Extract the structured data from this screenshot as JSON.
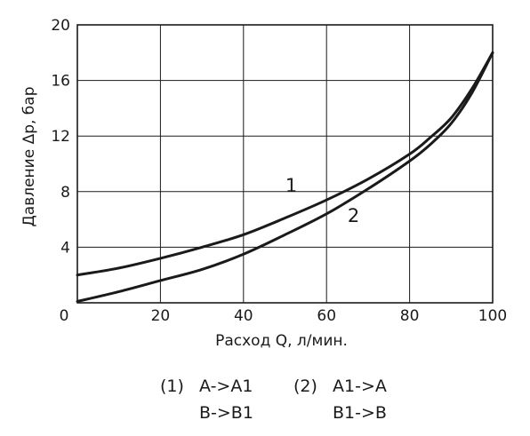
{
  "chart_data": {
    "type": "line",
    "xlabel": "Расход Q, л/мин.",
    "ylabel": "Давление Δp, бар",
    "xlim": [
      0,
      100
    ],
    "ylim": [
      0,
      20
    ],
    "xticks": [
      "0",
      "20",
      "40",
      "60",
      "80",
      "100"
    ],
    "yticks": [
      "4",
      "8",
      "12",
      "16",
      "20"
    ],
    "grid": true,
    "series": [
      {
        "name": "1",
        "x": [
          0,
          10,
          20,
          30,
          40,
          50,
          60,
          70,
          80,
          85,
          90,
          95,
          100
        ],
        "y": [
          2.0,
          2.5,
          3.2,
          4.0,
          4.9,
          6.1,
          7.4,
          8.9,
          10.7,
          11.9,
          13.3,
          15.4,
          18.0
        ]
      },
      {
        "name": "2",
        "x": [
          0,
          10,
          20,
          30,
          40,
          50,
          60,
          70,
          80,
          85,
          90,
          95,
          100
        ],
        "y": [
          0.1,
          0.8,
          1.6,
          2.4,
          3.5,
          4.9,
          6.4,
          8.2,
          10.2,
          11.4,
          12.9,
          15.1,
          18.0
        ]
      }
    ]
  },
  "legend": [
    {
      "num": "(1)",
      "lines": [
        "A->A1",
        "B->B1"
      ]
    },
    {
      "num": "(2)",
      "lines": [
        "A1->A",
        "B1->B"
      ]
    }
  ]
}
